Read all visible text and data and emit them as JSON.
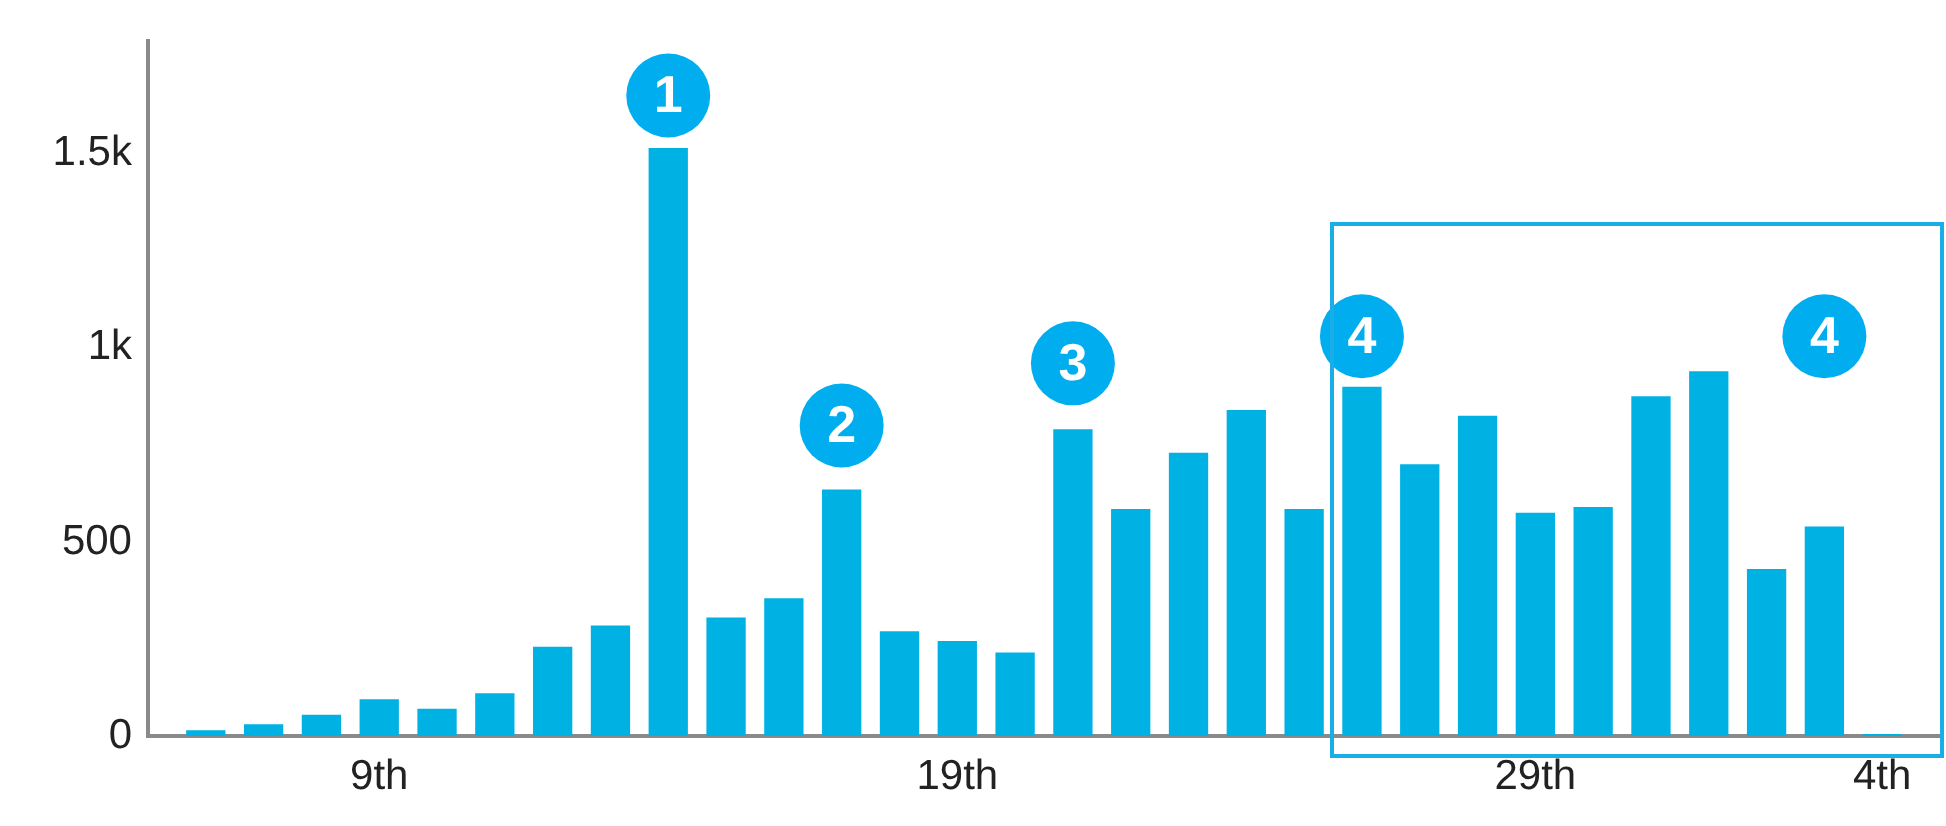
{
  "chart_data": {
    "type": "bar",
    "x": [
      "--01-06",
      "--01-07",
      "--01-08",
      "--01-09",
      "--01-10",
      "--01-11",
      "--01-12",
      "--01-13",
      "--01-14",
      "--01-15",
      "--01-16",
      "--01-17",
      "--01-18",
      "--01-19",
      "--01-20",
      "--01-21",
      "--01-22",
      "--01-23",
      "--01-24",
      "--01-25",
      "--01-26",
      "--01-27",
      "--01-28",
      "--01-29",
      "--01-30",
      "--01-31",
      "--02-01",
      "--02-02",
      "--02-03",
      "--02-04"
    ],
    "values": [
      15,
      30,
      55,
      95,
      70,
      110,
      230,
      285,
      1515,
      305,
      355,
      635,
      270,
      245,
      215,
      790,
      585,
      730,
      840,
      585,
      900,
      700,
      825,
      575,
      590,
      875,
      940,
      430,
      540,
      5
    ],
    "color": "#00b2e3",
    "xlim": [
      "--01-05",
      "--02-05"
    ],
    "xticks": [
      {
        "value": "--01-09",
        "label": "9th"
      },
      {
        "value": "--01-19",
        "label": "19th"
      },
      {
        "value": "--01-29",
        "label": "29th"
      },
      {
        "value": "--02-04",
        "label": "4th"
      }
    ],
    "ylim": [
      0,
      1790
    ],
    "yticks": [
      0,
      500,
      {
        "value": 1000,
        "label": "1k"
      },
      {
        "value": 1500,
        "label": "1.5k"
      }
    ],
    "grid": false,
    "legend": false,
    "annotations": [
      {
        "text": "1",
        "x": "--01-14",
        "y": 1650
      },
      {
        "text": "2",
        "x": "--01-17",
        "y": 800
      },
      {
        "text": "3",
        "x": "--01-21",
        "y": 960
      },
      {
        "text": "4",
        "x": "--01-26",
        "y": 1030
      },
      {
        "text": "4",
        "x": "--02-03",
        "y": 1030
      }
    ]
  }
}
